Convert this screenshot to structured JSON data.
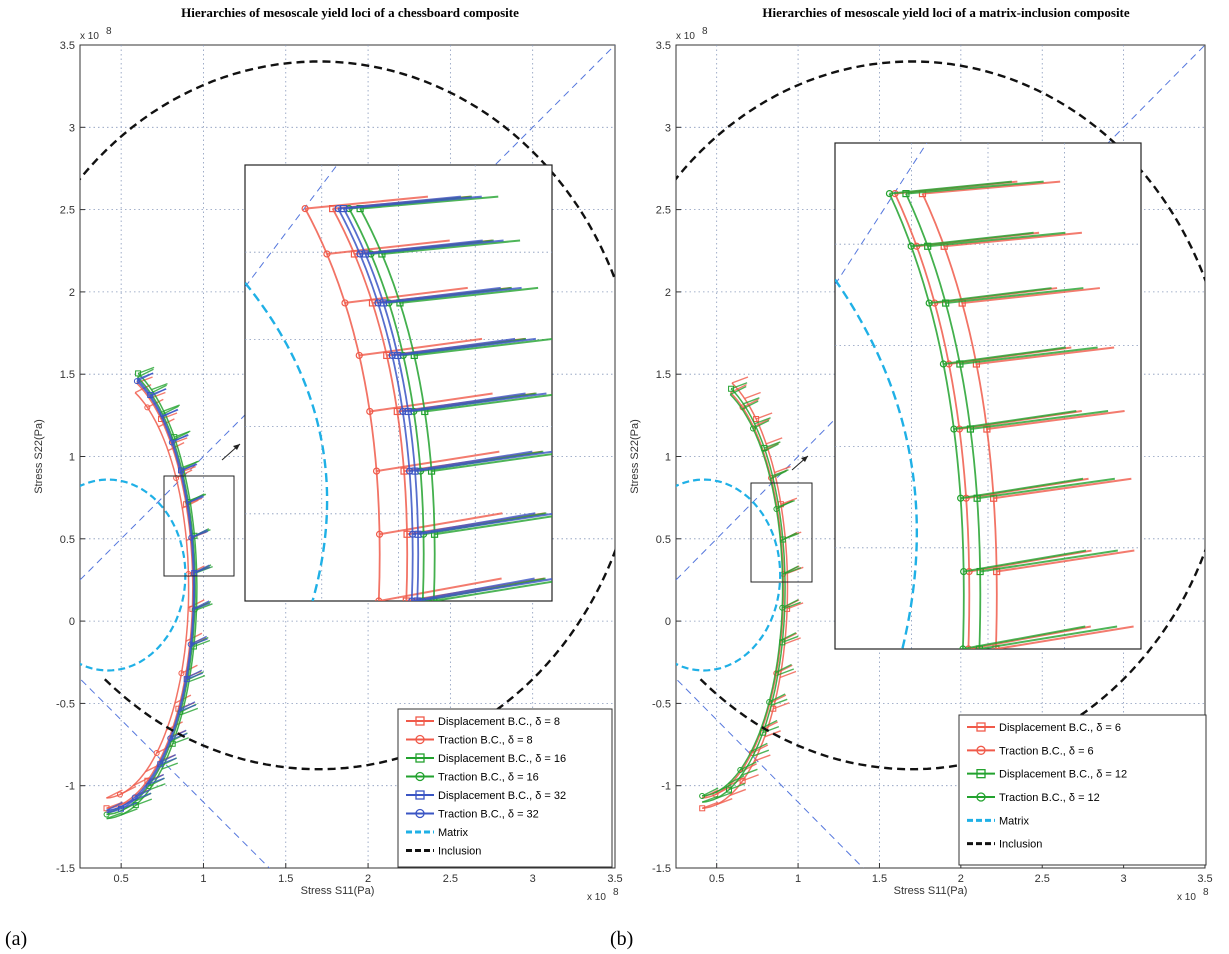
{
  "panel_labels": [
    "(a)",
    "(b)"
  ],
  "chart_data": [
    {
      "type": "line",
      "title": "Hierarchies of mesoscale yield loci of a chessboard composite",
      "xlabel": "Stress S11(Pa)",
      "ylabel": "Stress S22(Pa)",
      "x_exponent": "x 10",
      "y_exponent": "x 10",
      "exponent_power": "8",
      "xlim": [
        0.25,
        3.5
      ],
      "ylim": [
        -1.5,
        3.5
      ],
      "x_ticks": [
        "0.5",
        "1",
        "1.5",
        "2",
        "2.5",
        "3",
        "3.5"
      ],
      "x_tick_values": [
        0.5,
        1,
        1.5,
        2,
        2.5,
        3,
        3.5
      ],
      "y_ticks": [
        "-1.5",
        "-1",
        "-0.5",
        "0",
        "0.5",
        "1",
        "1.5",
        "2",
        "2.5",
        "3",
        "3.5"
      ],
      "y_tick_values": [
        -1.5,
        -1,
        -0.5,
        0,
        0.5,
        1,
        1.5,
        2,
        2.5,
        3,
        3.5
      ],
      "grid": true,
      "legend_position": "bottom-right",
      "series": [
        {
          "name": "Displacement B.C., δ = 8",
          "color": "#f05a4a",
          "marker": "square",
          "radius": 0.535,
          "center": [
            0.42,
            0.42
          ]
        },
        {
          "name": "Traction B.C., δ = 8",
          "color": "#f05a4a",
          "marker": "circle",
          "radius": 0.51,
          "center": [
            0.42,
            0.42
          ]
        },
        {
          "name": "Displacement B.C., δ = 16",
          "color": "#22a22e",
          "marker": "square",
          "radius": 0.56,
          "center": [
            0.42,
            0.42
          ]
        },
        {
          "name": "Traction B.C., δ = 16",
          "color": "#22a22e",
          "marker": "circle",
          "radius": 0.55,
          "center": [
            0.42,
            0.42
          ]
        },
        {
          "name": "Displacement B.C., δ = 32",
          "color": "#3a55c4",
          "marker": "square",
          "radius": 0.545,
          "center": [
            0.42,
            0.42
          ]
        },
        {
          "name": "Traction B.C., δ = 32",
          "color": "#3a55c4",
          "marker": "circle",
          "radius": 0.54,
          "center": [
            0.42,
            0.42
          ]
        },
        {
          "name": "Matrix",
          "color": "#1fb0e6",
          "style": "dashed",
          "radius": 0.44,
          "center": [
            0.42,
            0.42
          ]
        },
        {
          "name": "Inclusion",
          "color": "#111111",
          "style": "dashed",
          "radius": 2.0,
          "center": [
            1.6,
            1.4
          ]
        }
      ],
      "inset": {
        "x_range": [
          0.85,
          1.25
        ],
        "y_range": [
          0.3,
          0.95
        ]
      }
    },
    {
      "type": "line",
      "title": "Hierarchies of mesoscale yield loci of a matrix-inclusion composite",
      "xlabel": "Stress S11(Pa)",
      "ylabel": "Stress S22(Pa)",
      "x_exponent": "x 10",
      "y_exponent": "x 10",
      "exponent_power": "8",
      "xlim": [
        0.25,
        3.5
      ],
      "ylim": [
        -1.5,
        3.5
      ],
      "x_ticks": [
        "0.5",
        "1",
        "1.5",
        "2",
        "2.5",
        "3",
        "3.5"
      ],
      "x_tick_values": [
        0.5,
        1,
        1.5,
        2,
        2.5,
        3,
        3.5
      ],
      "y_ticks": [
        "-1.5",
        "-1",
        "-0.5",
        "0",
        "0.5",
        "1",
        "1.5",
        "2",
        "2.5",
        "3",
        "3.5"
      ],
      "y_tick_values": [
        -1.5,
        -1,
        -0.5,
        0,
        0.5,
        1,
        1.5,
        2,
        2.5,
        3,
        3.5
      ],
      "grid": true,
      "legend_position": "bottom-right",
      "series": [
        {
          "name": "Displacement B.C., δ = 6",
          "color": "#f05a4a",
          "marker": "square",
          "radius": 0.535,
          "center": [
            0.42,
            0.42
          ]
        },
        {
          "name": "Traction B.C., δ = 6",
          "color": "#f05a4a",
          "marker": "circle",
          "radius": 0.51,
          "center": [
            0.42,
            0.42
          ]
        },
        {
          "name": "Displacement B.C., δ = 12",
          "color": "#22a22e",
          "marker": "square",
          "radius": 0.52,
          "center": [
            0.42,
            0.42
          ]
        },
        {
          "name": "Traction B.C., δ = 12",
          "color": "#22a22e",
          "marker": "circle",
          "radius": 0.505,
          "center": [
            0.42,
            0.42
          ]
        },
        {
          "name": "Matrix",
          "color": "#1fb0e6",
          "style": "dashed",
          "radius": 0.44,
          "center": [
            0.42,
            0.42
          ]
        },
        {
          "name": "Inclusion",
          "color": "#111111",
          "style": "dashed",
          "radius": 2.0,
          "center": [
            1.6,
            1.4
          ]
        }
      ],
      "inset": {
        "x_range": [
          0.85,
          1.25
        ],
        "y_range": [
          0.25,
          0.85
        ]
      }
    }
  ]
}
